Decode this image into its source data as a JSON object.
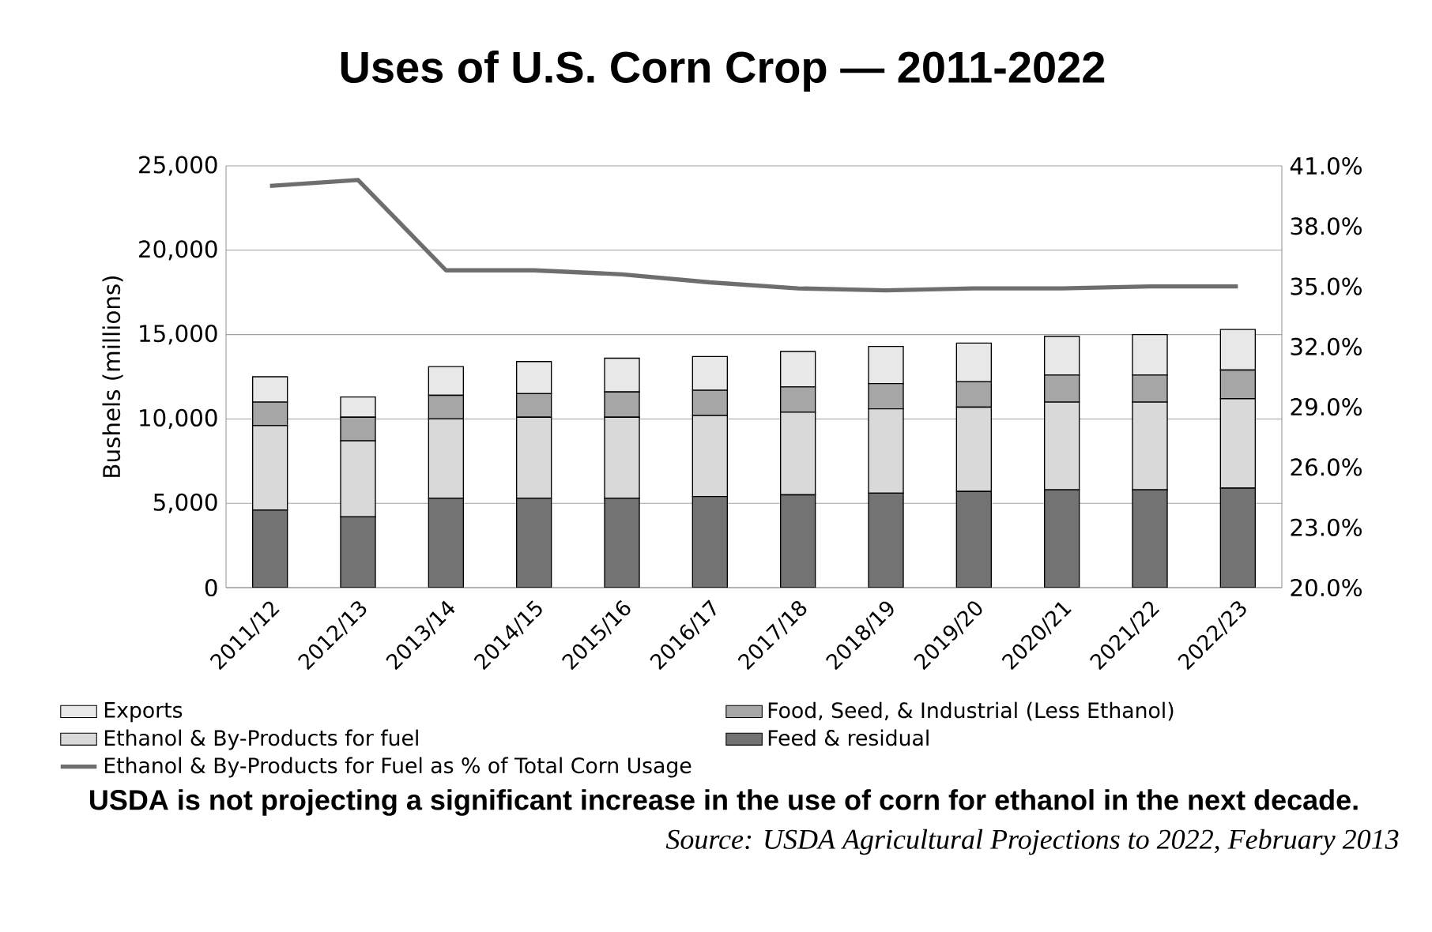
{
  "chart_data": {
    "type": "bar",
    "title": "Uses of U.S. Corn Crop — 2011-2022",
    "ylabel": "Bushels (millions)",
    "categories": [
      "2011/12",
      "2012/13",
      "2013/14",
      "2014/15",
      "2015/16",
      "2016/17",
      "2017/18",
      "2018/19",
      "2019/20",
      "2020/21",
      "2021/22",
      "2022/23"
    ],
    "stacked": true,
    "series": [
      {
        "name": "Feed & residual",
        "color": "#737373",
        "values": [
          4600,
          4200,
          5300,
          5300,
          5300,
          5400,
          5500,
          5600,
          5700,
          5800,
          5800,
          5900
        ]
      },
      {
        "name": "Ethanol & By-Products for fuel",
        "color": "#d9d9d9",
        "values": [
          5000,
          4500,
          4700,
          4800,
          4800,
          4800,
          4900,
          5000,
          5000,
          5200,
          5200,
          5300
        ]
      },
      {
        "name": "Food, Seed, & Industrial (Less Ethanol)",
        "color": "#a6a6a6",
        "values": [
          1400,
          1400,
          1400,
          1400,
          1500,
          1500,
          1500,
          1500,
          1500,
          1600,
          1600,
          1700
        ]
      },
      {
        "name": "Exports",
        "color": "#e8e8e8",
        "values": [
          1500,
          1200,
          1700,
          1900,
          2000,
          2000,
          2100,
          2200,
          2300,
          2300,
          2400,
          2400
        ]
      },
      {
        "name": "Ethanol & By-Products for Fuel as % of Total Corn Usage",
        "type": "line",
        "axis": "y2",
        "color": "#6e6e6e",
        "values": [
          40.0,
          40.3,
          35.8,
          35.8,
          35.6,
          35.2,
          34.9,
          34.8,
          34.9,
          34.9,
          35.0,
          35.0
        ]
      }
    ],
    "ylim": [
      0,
      25000
    ],
    "yticks": [
      0,
      {
        "value": 5000,
        "label": "5,000"
      },
      {
        "value": 10000,
        "label": "10,000"
      },
      {
        "value": 15000,
        "label": "15,000"
      },
      {
        "value": 20000,
        "label": "20,000"
      },
      {
        "value": 25000,
        "label": "25,000"
      }
    ],
    "y2lim": [
      20,
      41
    ],
    "y2ticks": [
      {
        "value": 20,
        "label": "20.0%"
      },
      {
        "value": 23,
        "label": "23.0%"
      },
      {
        "value": 26,
        "label": "26.0%"
      },
      {
        "value": 29,
        "label": "29.0%"
      },
      {
        "value": 32,
        "label": "32.0%"
      },
      {
        "value": 35,
        "label": "35.0%"
      },
      {
        "value": 38,
        "label": "38.0%"
      },
      {
        "value": 41,
        "label": "41.0%"
      }
    ],
    "grid": "y",
    "legend": "bottom",
    "annotations": [
      "**USDA is not projecting a significant increase in the use of corn for ethanol in the next decade.**",
      "*Source: USDA Agricultural Projections to 2022, February 2013*"
    ]
  }
}
